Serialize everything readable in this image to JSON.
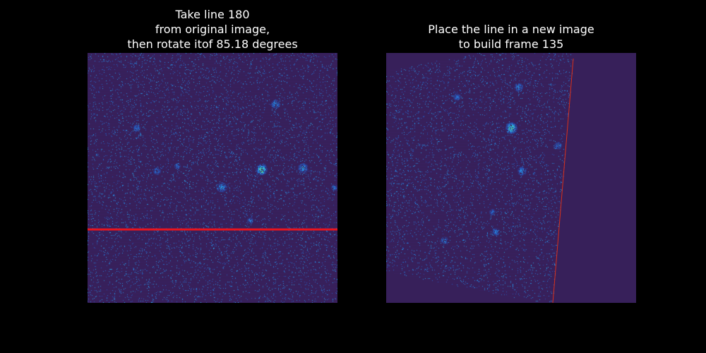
{
  "left_panel": {
    "title_lines": [
      "Take line 180",
      "from original image,",
      "then rotate itof 85.18 degrees"
    ],
    "selected_line_index": 180,
    "line_color": "#e8141e"
  },
  "right_panel": {
    "title_lines": [
      "Place the line in a new image",
      "to build frame 135"
    ],
    "frame_number": 135,
    "rotation_degrees": 85.18,
    "line_color": "#d8301a"
  },
  "colors": {
    "background": "#000000",
    "image_background": "#37205a",
    "colormap_low": "#37205a",
    "colormap_mid": "#2e6fd6",
    "colormap_high": "#b8e61a"
  }
}
